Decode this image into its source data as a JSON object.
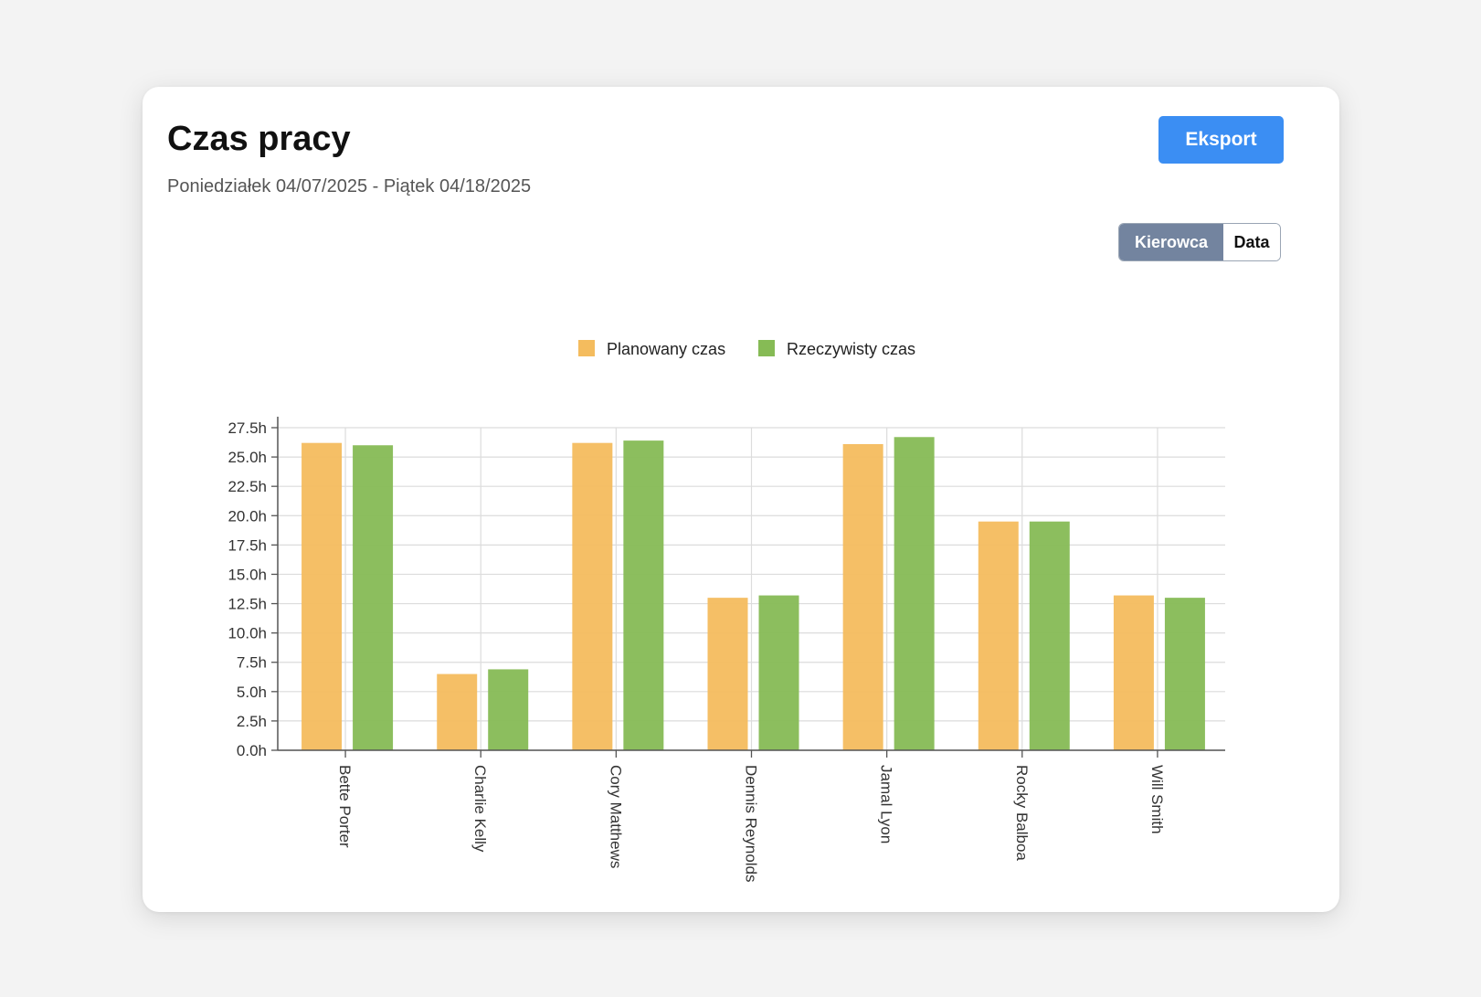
{
  "header": {
    "title": "Czas pracy",
    "date_range": "Poniedziałek 04/07/2025 - Piątek 04/18/2025",
    "export_label": "Eksport"
  },
  "view_toggle": {
    "options": [
      "Kierowca",
      "Data"
    ],
    "selected": "Kierowca"
  },
  "colors": {
    "planned": "#f4bc5e",
    "actual": "#86bb55",
    "accent": "#3b8ef3",
    "toggle_active": "#73849f"
  },
  "chart_data": {
    "type": "bar",
    "categories": [
      "Bette Porter",
      "Charlie Kelly",
      "Cory Matthews",
      "Dennis Reynolds",
      "Jamal Lyon",
      "Rocky Balboa",
      "Will Smith"
    ],
    "series": [
      {
        "name": "Planowany czas",
        "values": [
          26.2,
          6.5,
          26.2,
          13.0,
          26.1,
          19.5,
          13.2
        ]
      },
      {
        "name": "Rzeczywisty czas",
        "values": [
          26.0,
          6.9,
          26.4,
          13.2,
          26.7,
          19.5,
          13.0
        ]
      }
    ],
    "yticks": [
      "0.0h",
      "2.5h",
      "5.0h",
      "7.5h",
      "10.0h",
      "12.5h",
      "15.0h",
      "17.5h",
      "20.0h",
      "22.5h",
      "25.0h",
      "27.5h"
    ],
    "ylim": [
      0,
      27.5
    ],
    "xlabel": "",
    "ylabel": "",
    "grid": true,
    "legend": "top-center"
  }
}
